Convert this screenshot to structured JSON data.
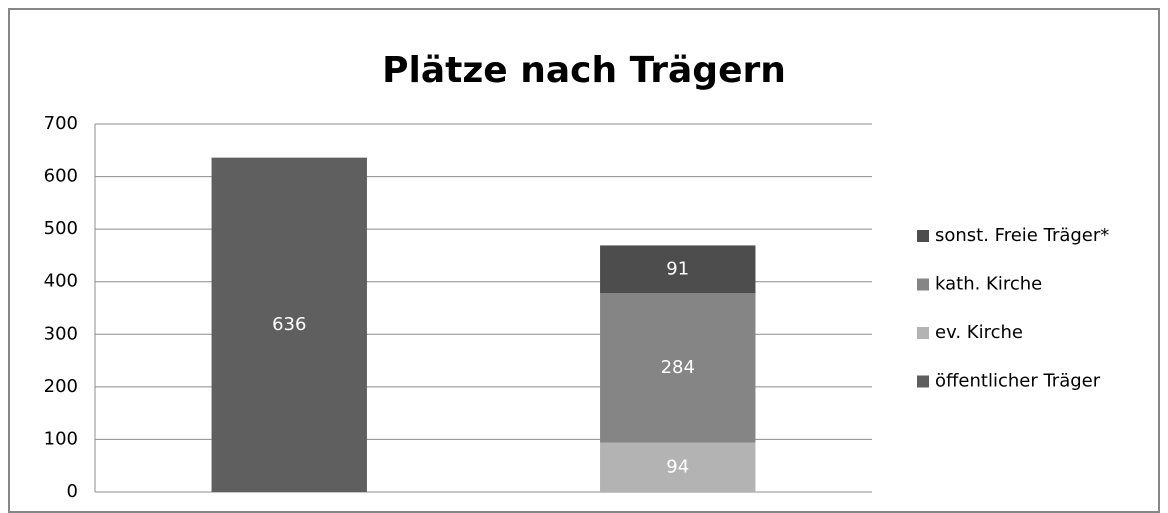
{
  "chart_data": {
    "type": "stacked_bar",
    "title": "Plätze nach Trägern",
    "categories": [
      null,
      null
    ],
    "series": [
      {
        "name": "öffentlicher Träger",
        "color": "#5f5f5f",
        "values": [
          636,
          null
        ]
      },
      {
        "name": "ev. Kirche",
        "color": "#b3b3b3",
        "values": [
          null,
          94
        ]
      },
      {
        "name": "kath. Kirche",
        "color": "#858585",
        "values": [
          null,
          284
        ]
      },
      {
        "name": "sonst. Freie Träger*",
        "color": "#4d4d4d",
        "values": [
          null,
          91
        ]
      }
    ],
    "ylim": [
      0,
      700
    ],
    "yticks": [
      0,
      100,
      200,
      300,
      400,
      500,
      600,
      700
    ],
    "grid": true,
    "legend": "right"
  }
}
